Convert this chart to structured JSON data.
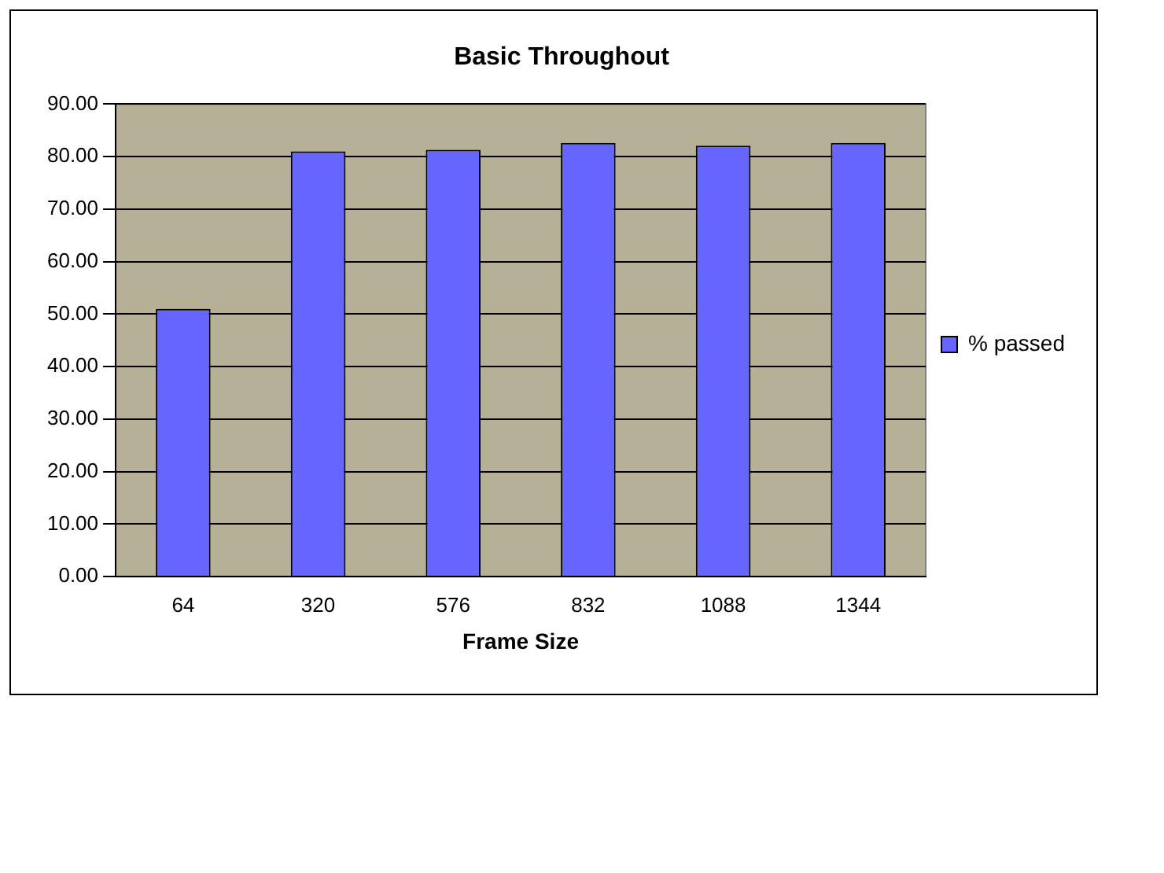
{
  "chart_data": {
    "type": "bar",
    "title": "Basic Throughout",
    "xlabel": "Frame Size",
    "categories": [
      "64",
      "320",
      "576",
      "832",
      "1088",
      "1344"
    ],
    "series": [
      {
        "name": "% passed",
        "color": "#6666ff",
        "values": [
          51,
          81,
          81.3,
          82.6,
          82.1,
          82.6
        ]
      }
    ],
    "ylim": [
      0,
      90
    ],
    "yticks": [
      {
        "value": 0,
        "label": "0.00"
      },
      {
        "value": 10,
        "label": "10.00"
      },
      {
        "value": 20,
        "label": "20.00"
      },
      {
        "value": 30,
        "label": "30.00"
      },
      {
        "value": 40,
        "label": "40.00"
      },
      {
        "value": 50,
        "label": "50.00"
      },
      {
        "value": 60,
        "label": "60.00"
      },
      {
        "value": 70,
        "label": "70.00"
      },
      {
        "value": 80,
        "label": "80.00"
      },
      {
        "value": 90,
        "label": "90.00"
      }
    ],
    "grid": "y",
    "legend": "right"
  }
}
